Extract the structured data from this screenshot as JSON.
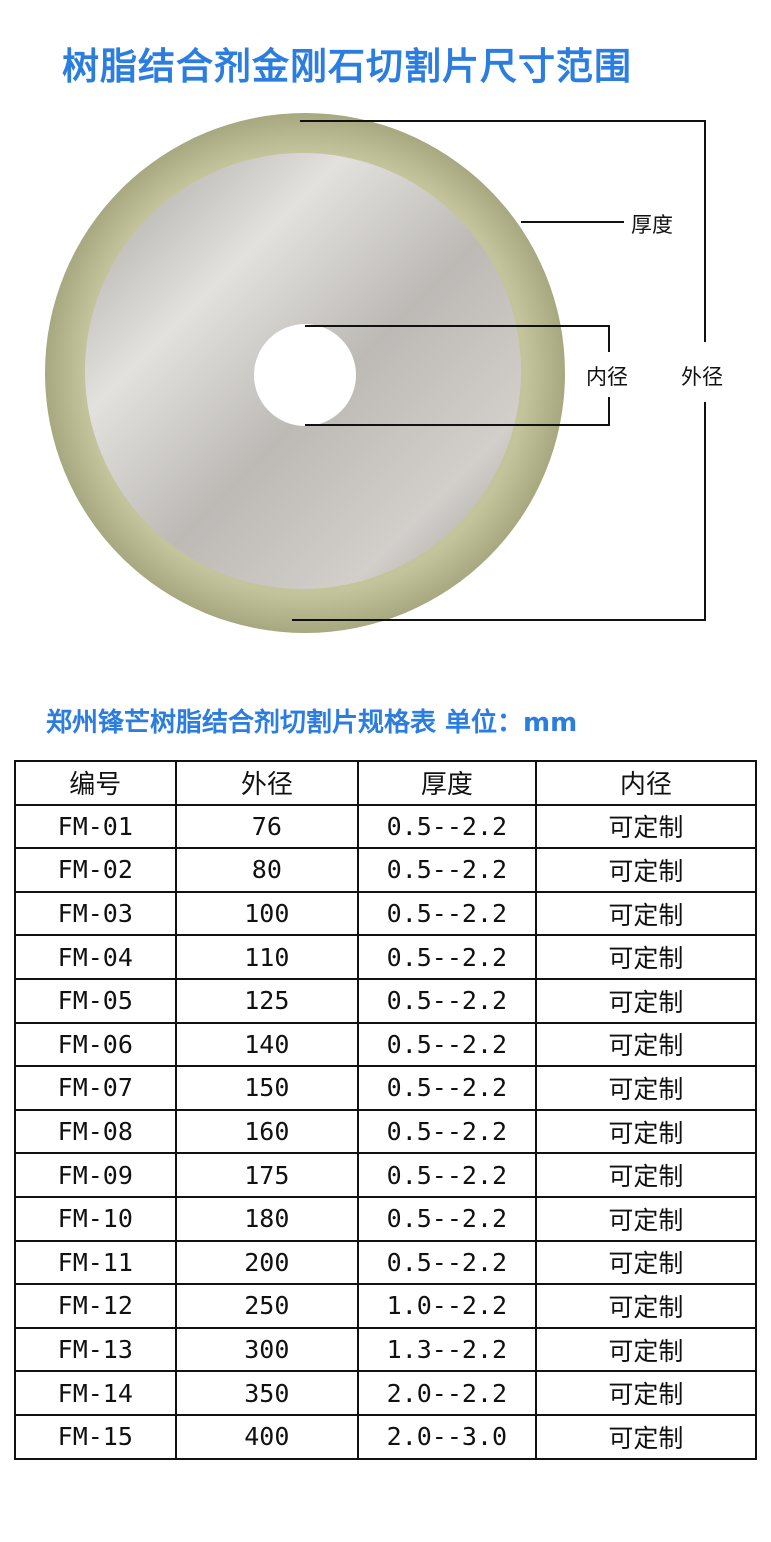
{
  "title": "树脂结合剂金刚石切割片尺寸范围",
  "diagram": {
    "labels": {
      "thickness": "厚度",
      "inner_diameter": "内径",
      "outer_diameter": "外径"
    },
    "colors": {
      "rim": "#b9b98f",
      "metal": "#c8c6c2"
    }
  },
  "table_title": "郑州锋芒树脂结合剂切割片规格表 单位：mm",
  "table": {
    "headers": [
      "编号",
      "外径",
      "厚度",
      "内径"
    ],
    "rows": [
      [
        "FM-01",
        "76",
        "0.5--2.2",
        "可定制"
      ],
      [
        "FM-02",
        "80",
        "0.5--2.2",
        "可定制"
      ],
      [
        "FM-03",
        "100",
        "0.5--2.2",
        "可定制"
      ],
      [
        "FM-04",
        "110",
        "0.5--2.2",
        "可定制"
      ],
      [
        "FM-05",
        "125",
        "0.5--2.2",
        "可定制"
      ],
      [
        "FM-06",
        "140",
        "0.5--2.2",
        "可定制"
      ],
      [
        "FM-07",
        "150",
        "0.5--2.2",
        "可定制"
      ],
      [
        "FM-08",
        "160",
        "0.5--2.2",
        "可定制"
      ],
      [
        "FM-09",
        "175",
        "0.5--2.2",
        "可定制"
      ],
      [
        "FM-10",
        "180",
        "0.5--2.2",
        "可定制"
      ],
      [
        "FM-11",
        "200",
        "0.5--2.2",
        "可定制"
      ],
      [
        "FM-12",
        "250",
        "1.0--2.2",
        "可定制"
      ],
      [
        "FM-13",
        "300",
        "1.3--2.2",
        "可定制"
      ],
      [
        "FM-14",
        "350",
        "2.0--2.2",
        "可定制"
      ],
      [
        "FM-15",
        "400",
        "2.0--3.0",
        "可定制"
      ]
    ]
  }
}
